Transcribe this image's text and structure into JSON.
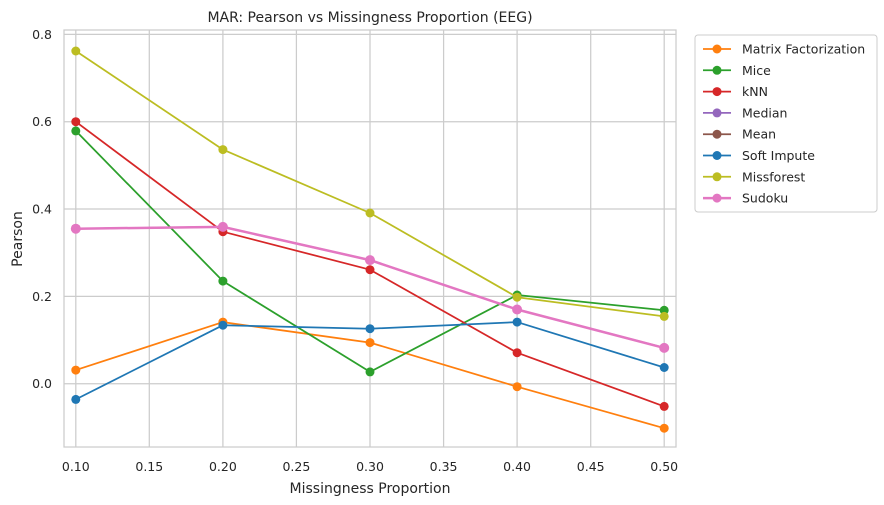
{
  "chart_data": {
    "type": "line",
    "title": "MAR: Pearson vs Missingness Proportion (EEG)",
    "xlabel": "Missingness Proportion",
    "ylabel": "Pearson",
    "xlim": [
      0.092,
      0.508
    ],
    "ylim": [
      -0.145,
      0.81
    ],
    "xticks": [
      0.1,
      0.15,
      0.2,
      0.25,
      0.3,
      0.35,
      0.4,
      0.45,
      0.5
    ],
    "xtick_labels": [
      "0.10",
      "0.15",
      "0.20",
      "0.25",
      "0.30",
      "0.35",
      "0.40",
      "0.45",
      "0.50"
    ],
    "yticks": [
      0.0,
      0.2,
      0.4,
      0.6,
      0.8
    ],
    "ytick_labels": [
      "0.0",
      "0.2",
      "0.4",
      "0.6",
      "0.8"
    ],
    "grid": true,
    "legend_position": "outside-top-right",
    "x": [
      0.1,
      0.2,
      0.3,
      0.4,
      0.5
    ],
    "series": [
      {
        "name": "Matrix Factorization",
        "color": "#ff7f0e",
        "values": [
          0.031,
          0.141,
          0.094,
          -0.007,
          -0.102
        ]
      },
      {
        "name": "Mice",
        "color": "#2ca02c",
        "values": [
          0.579,
          0.235,
          0.027,
          0.203,
          0.168
        ]
      },
      {
        "name": "kNN",
        "color": "#d62728",
        "values": [
          0.6,
          0.348,
          0.261,
          0.071,
          -0.052
        ]
      },
      {
        "name": "Median",
        "color": "#9467bd",
        "values": [
          0.355,
          0.359,
          0.283,
          0.17,
          0.082
        ]
      },
      {
        "name": "Mean",
        "color": "#8c564b",
        "values": [
          0.355,
          0.359,
          0.283,
          0.17,
          0.082
        ]
      },
      {
        "name": "Soft Impute",
        "color": "#1f77b4",
        "values": [
          -0.036,
          0.134,
          0.126,
          0.141,
          0.037
        ]
      },
      {
        "name": "Missforest",
        "color": "#bcbd22",
        "values": [
          0.762,
          0.536,
          0.391,
          0.198,
          0.154
        ]
      },
      {
        "name": "Sudoku",
        "color": "#e377c2",
        "values": [
          0.355,
          0.359,
          0.283,
          0.17,
          0.082
        ],
        "emphasis": true
      }
    ]
  }
}
